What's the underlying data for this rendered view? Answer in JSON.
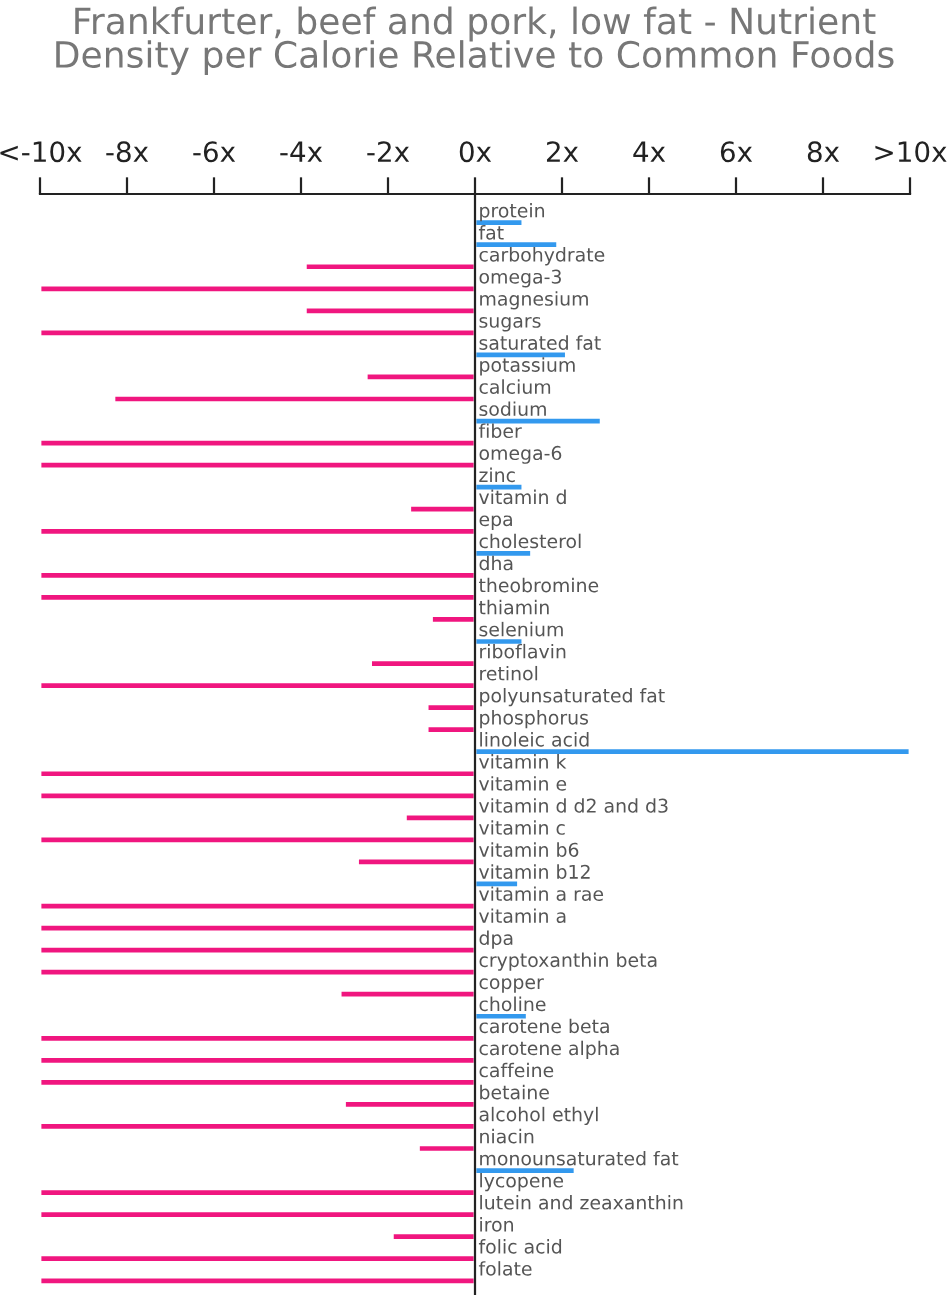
{
  "chart_data": {
    "type": "bar",
    "orientation": "horizontal",
    "title": "Frankfurter, beef and pork, low fat - Nutrient Density per Calorie Relative to Common Foods",
    "categories": [
      "protein",
      "fat",
      "carbohydrate",
      "omega-3",
      "magnesium",
      "sugars",
      "saturated fat",
      "potassium",
      "calcium",
      "sodium",
      "fiber",
      "omega-6",
      "zinc",
      "vitamin d",
      "epa",
      "cholesterol",
      "dha",
      "theobromine",
      "thiamin",
      "selenium",
      "riboflavin",
      "retinol",
      "polyunsaturated fat",
      "phosphorus",
      "linoleic acid",
      "vitamin k",
      "vitamin e",
      "vitamin d d2 and d3",
      "vitamin c",
      "vitamin b6",
      "vitamin b12",
      "vitamin a rae",
      "vitamin a",
      "dpa",
      "cryptoxanthin beta",
      "copper",
      "choline",
      "carotene beta",
      "carotene alpha",
      "caffeine",
      "betaine",
      "alcohol ethyl",
      "niacin",
      "monounsaturated fat",
      "lycopene",
      "lutein and zeaxanthin",
      "iron",
      "folic acid",
      "folate"
    ],
    "values": [
      1.1,
      1.9,
      -3.9,
      -10,
      -3.9,
      -10,
      2.1,
      -2.5,
      -8.3,
      2.9,
      -10,
      -10,
      1.1,
      -1.5,
      -10,
      1.3,
      -10,
      -10,
      -1.0,
      1.1,
      -2.4,
      -10,
      -1.1,
      -1.1,
      10,
      -10,
      -10,
      -1.6,
      -10,
      -2.7,
      1.0,
      -10,
      -10,
      -10,
      -10,
      -3.1,
      1.2,
      -10,
      -10,
      -10,
      -3.0,
      -10,
      -1.3,
      2.3,
      -10,
      -10,
      -1.9,
      -10,
      -10
    ],
    "colors": [
      "#3399ee",
      "#3399ee",
      "#f0167f",
      "#f0167f",
      "#f0167f",
      "#f0167f",
      "#3399ee",
      "#f0167f",
      "#f0167f",
      "#3399ee",
      "#f0167f",
      "#f0167f",
      "#3399ee",
      "#f0167f",
      "#f0167f",
      "#3399ee",
      "#f0167f",
      "#f0167f",
      "#f0167f",
      "#3399ee",
      "#f0167f",
      "#f0167f",
      "#f0167f",
      "#f0167f",
      "#3399ee",
      "#f0167f",
      "#f0167f",
      "#f0167f",
      "#f0167f",
      "#f0167f",
      "#3399ee",
      "#f0167f",
      "#f0167f",
      "#f0167f",
      "#f0167f",
      "#f0167f",
      "#3399ee",
      "#f0167f",
      "#f0167f",
      "#f0167f",
      "#f0167f",
      "#f0167f",
      "#f0167f",
      "#3399ee",
      "#f0167f",
      "#f0167f",
      "#f0167f",
      "#f0167f",
      "#f0167f"
    ],
    "xlim": [
      -10,
      10
    ],
    "xticks": [
      {
        "value": -10,
        "label": "<-10x"
      },
      {
        "value": -8,
        "label": "-8x"
      },
      {
        "value": -6,
        "label": "-6x"
      },
      {
        "value": -4,
        "label": "-4x"
      },
      {
        "value": -2,
        "label": "-2x"
      },
      {
        "value": 0,
        "label": "0x"
      },
      {
        "value": 2,
        "label": "2x"
      },
      {
        "value": 4,
        "label": "4x"
      },
      {
        "value": 6,
        "label": "6x"
      },
      {
        "value": 8,
        "label": "8x"
      },
      {
        "value": 10,
        "label": ">10x"
      }
    ],
    "grid": false,
    "legend": false
  }
}
